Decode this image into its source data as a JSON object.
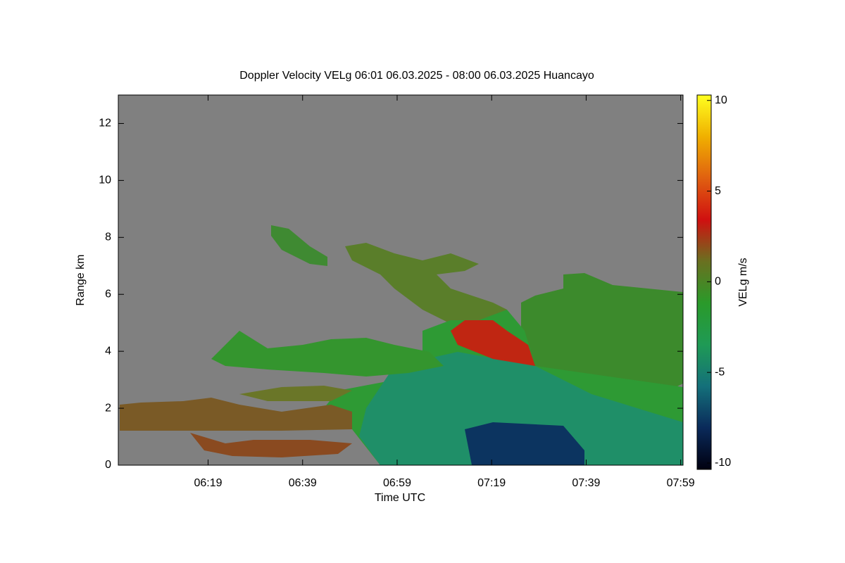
{
  "chart_data": {
    "type": "heatmap",
    "title": "Doppler Velocity VELg   06:01 06.03.2025 - 08:00 06.03.2025 Huancayo",
    "x_label": "Time UTC",
    "y_label": "Range km",
    "xlim": [
      360,
      479.5
    ],
    "xticks": [
      {
        "value": 379,
        "label": "06:19"
      },
      {
        "value": 399,
        "label": "06:39"
      },
      {
        "value": 419,
        "label": "06:59"
      },
      {
        "value": 439,
        "label": "07:19"
      },
      {
        "value": 459,
        "label": "07:39"
      },
      {
        "value": 479,
        "label": "07:59"
      }
    ],
    "ylim": [
      0,
      13
    ],
    "yticks": [
      0,
      2,
      4,
      6,
      8,
      10,
      12
    ],
    "colorbar": {
      "label": "VELg m/s",
      "clim": [
        -10.35,
        10.3
      ],
      "ticks": [
        -10,
        -5,
        0,
        5,
        10
      ],
      "colormap": [
        "#000010",
        "#0a2a5a",
        "#14707a",
        "#1f9a55",
        "#2a9a2a",
        "#6a7020",
        "#d01010",
        "#e06010",
        "#f0b000",
        "#ffff20"
      ]
    }
  }
}
